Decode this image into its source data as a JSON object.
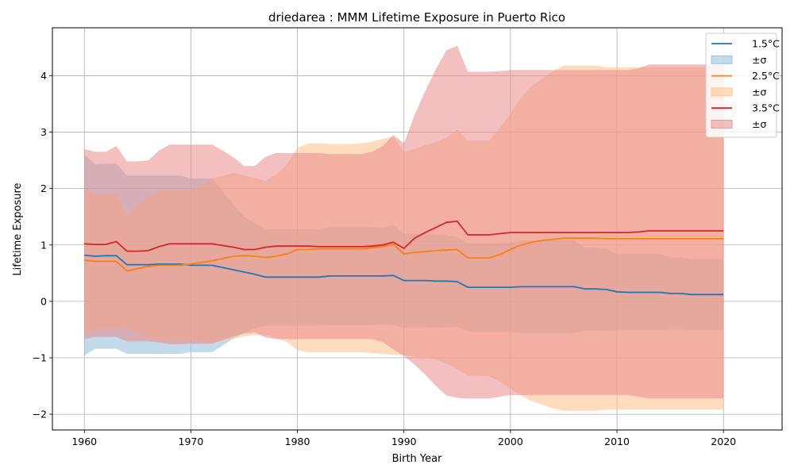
{
  "chart_data": {
    "type": "line",
    "title": "driedarea : MMM Lifetime Exposure in Puerto Rico",
    "xlabel": "Birth Year",
    "ylabel": "Lifetime Exposure",
    "xlim": [
      1957,
      2025.5
    ],
    "ylim": [
      -2.28,
      4.85
    ],
    "xticks": [
      1960,
      1970,
      1980,
      1990,
      2000,
      2010,
      2020
    ],
    "yticks": [
      -2,
      -1,
      0,
      1,
      2,
      3,
      4
    ],
    "ytick_labels": [
      "−2",
      "−1",
      "0",
      "1",
      "2",
      "3",
      "4"
    ],
    "grid": true,
    "legend_position": "top-right",
    "x": [
      1960,
      1961,
      1962,
      1963,
      1964,
      1965,
      1966,
      1967,
      1968,
      1969,
      1970,
      1971,
      1972,
      1973,
      1974,
      1975,
      1976,
      1977,
      1978,
      1979,
      1980,
      1981,
      1982,
      1983,
      1984,
      1985,
      1986,
      1987,
      1988,
      1989,
      1990,
      1991,
      1992,
      1993,
      1994,
      1995,
      1996,
      1997,
      1998,
      1999,
      2000,
      2001,
      2002,
      2003,
      2004,
      2005,
      2006,
      2007,
      2008,
      2009,
      2010,
      2011,
      2012,
      2013,
      2014,
      2015,
      2016,
      2017,
      2018,
      2019,
      2020
    ],
    "series": [
      {
        "name": "1.5°C",
        "band_label": "±σ",
        "color": "#1f77b4",
        "band_color": "#8fbbd9",
        "mean": [
          0.82,
          0.8,
          0.81,
          0.81,
          0.65,
          0.65,
          0.65,
          0.66,
          0.66,
          0.66,
          0.64,
          0.64,
          0.64,
          0.6,
          0.56,
          0.52,
          0.48,
          0.43,
          0.43,
          0.43,
          0.43,
          0.43,
          0.43,
          0.45,
          0.45,
          0.45,
          0.45,
          0.45,
          0.45,
          0.46,
          0.37,
          0.37,
          0.37,
          0.36,
          0.36,
          0.35,
          0.25,
          0.25,
          0.25,
          0.25,
          0.25,
          0.26,
          0.26,
          0.26,
          0.26,
          0.26,
          0.26,
          0.22,
          0.22,
          0.21,
          0.17,
          0.16,
          0.16,
          0.16,
          0.16,
          0.14,
          0.14,
          0.12,
          0.12,
          0.12,
          0.12
        ],
        "upper": [
          2.6,
          2.43,
          2.44,
          2.44,
          2.23,
          2.23,
          2.23,
          2.23,
          2.23,
          2.23,
          2.18,
          2.18,
          2.18,
          1.95,
          1.72,
          1.5,
          1.38,
          1.28,
          1.28,
          1.28,
          1.28,
          1.28,
          1.28,
          1.32,
          1.32,
          1.32,
          1.32,
          1.32,
          1.3,
          1.36,
          1.2,
          1.2,
          1.2,
          1.18,
          1.18,
          1.14,
          1.03,
          1.03,
          1.03,
          1.03,
          1.04,
          1.08,
          1.08,
          1.08,
          1.08,
          1.08,
          1.08,
          0.95,
          0.95,
          0.93,
          0.84,
          0.84,
          0.84,
          0.84,
          0.84,
          0.78,
          0.78,
          0.75,
          0.75,
          0.75,
          0.75
        ],
        "lower": [
          -0.96,
          -0.84,
          -0.84,
          -0.84,
          -0.93,
          -0.93,
          -0.93,
          -0.93,
          -0.93,
          -0.93,
          -0.9,
          -0.9,
          -0.9,
          -0.78,
          -0.66,
          -0.56,
          -0.48,
          -0.43,
          -0.43,
          -0.43,
          -0.43,
          -0.43,
          -0.43,
          -0.42,
          -0.42,
          -0.42,
          -0.42,
          -0.42,
          -0.41,
          -0.42,
          -0.47,
          -0.47,
          -0.47,
          -0.46,
          -0.46,
          -0.45,
          -0.54,
          -0.54,
          -0.54,
          -0.54,
          -0.54,
          -0.56,
          -0.56,
          -0.56,
          -0.56,
          -0.56,
          -0.56,
          -0.52,
          -0.52,
          -0.52,
          -0.51,
          -0.51,
          -0.51,
          -0.51,
          -0.51,
          -0.5,
          -0.5,
          -0.51,
          -0.51,
          -0.51,
          -0.51
        ]
      },
      {
        "name": "2.5°C",
        "band_label": "±σ",
        "color": "#ff7f0e",
        "band_color": "#ffbf86",
        "mean": [
          0.73,
          0.71,
          0.71,
          0.71,
          0.54,
          0.58,
          0.62,
          0.64,
          0.64,
          0.64,
          0.66,
          0.69,
          0.72,
          0.76,
          0.8,
          0.81,
          0.8,
          0.78,
          0.8,
          0.84,
          0.92,
          0.92,
          0.93,
          0.93,
          0.93,
          0.93,
          0.93,
          0.95,
          0.97,
          1.01,
          0.84,
          0.87,
          0.88,
          0.9,
          0.91,
          0.92,
          0.77,
          0.77,
          0.77,
          0.83,
          0.92,
          1.0,
          1.05,
          1.08,
          1.1,
          1.12,
          1.12,
          1.12,
          1.12,
          1.11,
          1.11,
          1.11,
          1.11,
          1.11,
          1.11,
          1.11,
          1.11,
          1.11,
          1.11,
          1.11,
          1.11
        ],
        "upper": [
          2.0,
          1.9,
          1.9,
          1.9,
          1.53,
          1.7,
          1.86,
          1.97,
          1.97,
          1.97,
          1.97,
          2.05,
          2.18,
          2.22,
          2.28,
          2.23,
          2.18,
          2.14,
          2.24,
          2.42,
          2.72,
          2.8,
          2.8,
          2.79,
          2.79,
          2.79,
          2.8,
          2.83,
          2.88,
          2.92,
          2.65,
          2.7,
          2.77,
          2.82,
          2.9,
          3.05,
          2.85,
          2.85,
          2.85,
          3.07,
          3.33,
          3.62,
          3.82,
          3.95,
          4.08,
          4.18,
          4.18,
          4.18,
          4.18,
          4.15,
          4.15,
          4.15,
          4.15,
          4.15,
          4.15,
          4.15,
          4.15,
          4.15,
          4.15,
          4.15,
          4.15
        ],
        "lower": [
          -0.55,
          -0.5,
          -0.5,
          -0.5,
          -0.47,
          -0.56,
          -0.66,
          -0.7,
          -0.7,
          -0.7,
          -0.7,
          -0.72,
          -0.73,
          -0.7,
          -0.66,
          -0.62,
          -0.6,
          -0.6,
          -0.65,
          -0.72,
          -0.87,
          -0.9,
          -0.9,
          -0.9,
          -0.9,
          -0.9,
          -0.9,
          -0.92,
          -0.93,
          -0.95,
          -0.95,
          -0.98,
          -1.0,
          -1.03,
          -1.1,
          -1.2,
          -1.32,
          -1.32,
          -1.33,
          -1.42,
          -1.55,
          -1.67,
          -1.77,
          -1.83,
          -1.9,
          -1.94,
          -1.94,
          -1.94,
          -1.94,
          -1.92,
          -1.92,
          -1.92,
          -1.92,
          -1.92,
          -1.92,
          -1.92,
          -1.92,
          -1.92,
          -1.92,
          -1.92,
          -1.92
        ]
      },
      {
        "name": "3.5°C",
        "band_label": "±σ",
        "color": "#d62728",
        "band_color": "#e98a8b",
        "mean": [
          1.02,
          1.01,
          1.01,
          1.06,
          0.89,
          0.89,
          0.9,
          0.97,
          1.02,
          1.02,
          1.02,
          1.02,
          1.02,
          0.99,
          0.96,
          0.92,
          0.92,
          0.96,
          0.98,
          0.98,
          0.98,
          0.98,
          0.97,
          0.97,
          0.97,
          0.97,
          0.97,
          0.98,
          1.0,
          1.05,
          0.94,
          1.12,
          1.22,
          1.31,
          1.4,
          1.42,
          1.18,
          1.18,
          1.18,
          1.2,
          1.22,
          1.22,
          1.22,
          1.22,
          1.22,
          1.22,
          1.22,
          1.22,
          1.22,
          1.22,
          1.22,
          1.22,
          1.23,
          1.25,
          1.25,
          1.25,
          1.25,
          1.25,
          1.25,
          1.25,
          1.25
        ],
        "upper": [
          2.7,
          2.65,
          2.65,
          2.75,
          2.48,
          2.48,
          2.5,
          2.67,
          2.78,
          2.78,
          2.78,
          2.78,
          2.78,
          2.67,
          2.55,
          2.4,
          2.4,
          2.56,
          2.63,
          2.63,
          2.63,
          2.63,
          2.63,
          2.61,
          2.61,
          2.61,
          2.61,
          2.65,
          2.75,
          2.95,
          2.8,
          3.3,
          3.73,
          4.12,
          4.45,
          4.53,
          4.07,
          4.07,
          4.07,
          4.08,
          4.1,
          4.1,
          4.1,
          4.1,
          4.1,
          4.1,
          4.1,
          4.1,
          4.1,
          4.1,
          4.1,
          4.1,
          4.13,
          4.2,
          4.2,
          4.2,
          4.2,
          4.2,
          4.2,
          4.2,
          4.2
        ],
        "lower": [
          -0.67,
          -0.63,
          -0.63,
          -0.63,
          -0.71,
          -0.71,
          -0.71,
          -0.73,
          -0.76,
          -0.76,
          -0.75,
          -0.75,
          -0.75,
          -0.68,
          -0.62,
          -0.57,
          -0.55,
          -0.64,
          -0.67,
          -0.67,
          -0.67,
          -0.67,
          -0.67,
          -0.67,
          -0.67,
          -0.67,
          -0.67,
          -0.67,
          -0.72,
          -0.85,
          -0.97,
          -1.12,
          -1.3,
          -1.5,
          -1.67,
          -1.71,
          -1.72,
          -1.72,
          -1.72,
          -1.69,
          -1.66,
          -1.66,
          -1.66,
          -1.66,
          -1.66,
          -1.66,
          -1.66,
          -1.66,
          -1.66,
          -1.66,
          -1.66,
          -1.66,
          -1.69,
          -1.72,
          -1.72,
          -1.72,
          -1.72,
          -1.72,
          -1.72,
          -1.72,
          -1.72
        ]
      }
    ]
  }
}
